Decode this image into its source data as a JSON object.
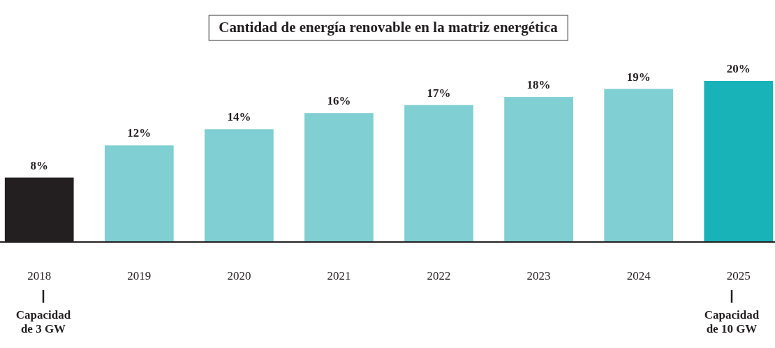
{
  "chart_data": {
    "type": "bar",
    "title": "Cantidad de energía renovable en la matriz energética",
    "categories": [
      "2018",
      "2019",
      "2020",
      "2021",
      "2022",
      "2023",
      "2024",
      "2025"
    ],
    "values": [
      8,
      12,
      14,
      16,
      17,
      18,
      19,
      20
    ],
    "colors": [
      "#231f20",
      "#7fcfd3",
      "#7fcfd3",
      "#7fcfd3",
      "#7fcfd3",
      "#7fcfd3",
      "#7fcfd3",
      "#17b3b8"
    ],
    "value_labels": [
      "8%",
      "12%",
      "14%",
      "16%",
      "17%",
      "18%",
      "19%",
      "20%"
    ],
    "annotations": [
      "Capacidad de 3 GW",
      "Capacidad de 10 GW"
    ]
  }
}
